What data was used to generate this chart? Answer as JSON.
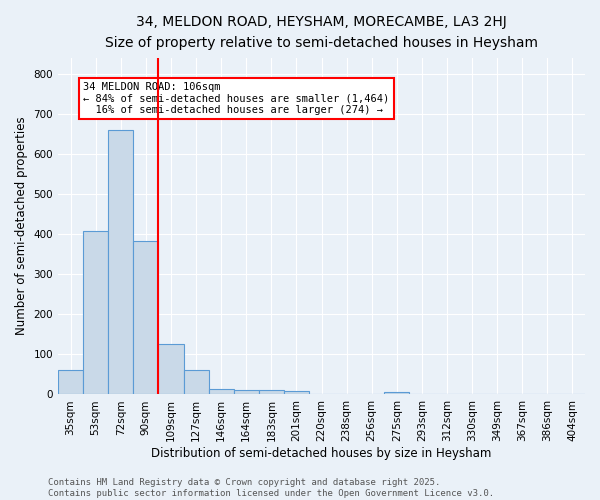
{
  "title": "34, MELDON ROAD, HEYSHAM, MORECAMBE, LA3 2HJ",
  "subtitle": "Size of property relative to semi-detached houses in Heysham",
  "xlabel": "Distribution of semi-detached houses by size in Heysham",
  "ylabel": "Number of semi-detached properties",
  "bin_labels": [
    "35sqm",
    "53sqm",
    "72sqm",
    "90sqm",
    "109sqm",
    "127sqm",
    "146sqm",
    "164sqm",
    "183sqm",
    "201sqm",
    "220sqm",
    "238sqm",
    "256sqm",
    "275sqm",
    "293sqm",
    "312sqm",
    "330sqm",
    "349sqm",
    "367sqm",
    "386sqm",
    "404sqm"
  ],
  "bar_values": [
    62,
    408,
    660,
    382,
    125,
    62,
    14,
    10,
    10,
    9,
    0,
    0,
    0,
    5,
    0,
    0,
    0,
    0,
    0,
    0,
    0
  ],
  "bar_color": "#c9d9e8",
  "bar_edge_color": "#5b9bd5",
  "vline_x": 3.5,
  "vline_color": "red",
  "annotation_text": "34 MELDON ROAD: 106sqm\n← 84% of semi-detached houses are smaller (1,464)\n  16% of semi-detached houses are larger (274) →",
  "annotation_box_color": "white",
  "annotation_box_edge": "red",
  "ylim": [
    0,
    840
  ],
  "yticks": [
    0,
    100,
    200,
    300,
    400,
    500,
    600,
    700,
    800
  ],
  "background_color": "#eaf1f8",
  "footnote": "Contains HM Land Registry data © Crown copyright and database right 2025.\nContains public sector information licensed under the Open Government Licence v3.0.",
  "title_fontsize": 10,
  "subtitle_fontsize": 9,
  "xlabel_fontsize": 8.5,
  "ylabel_fontsize": 8.5,
  "tick_fontsize": 7.5,
  "footnote_fontsize": 6.5,
  "ann_fontsize": 7.5
}
